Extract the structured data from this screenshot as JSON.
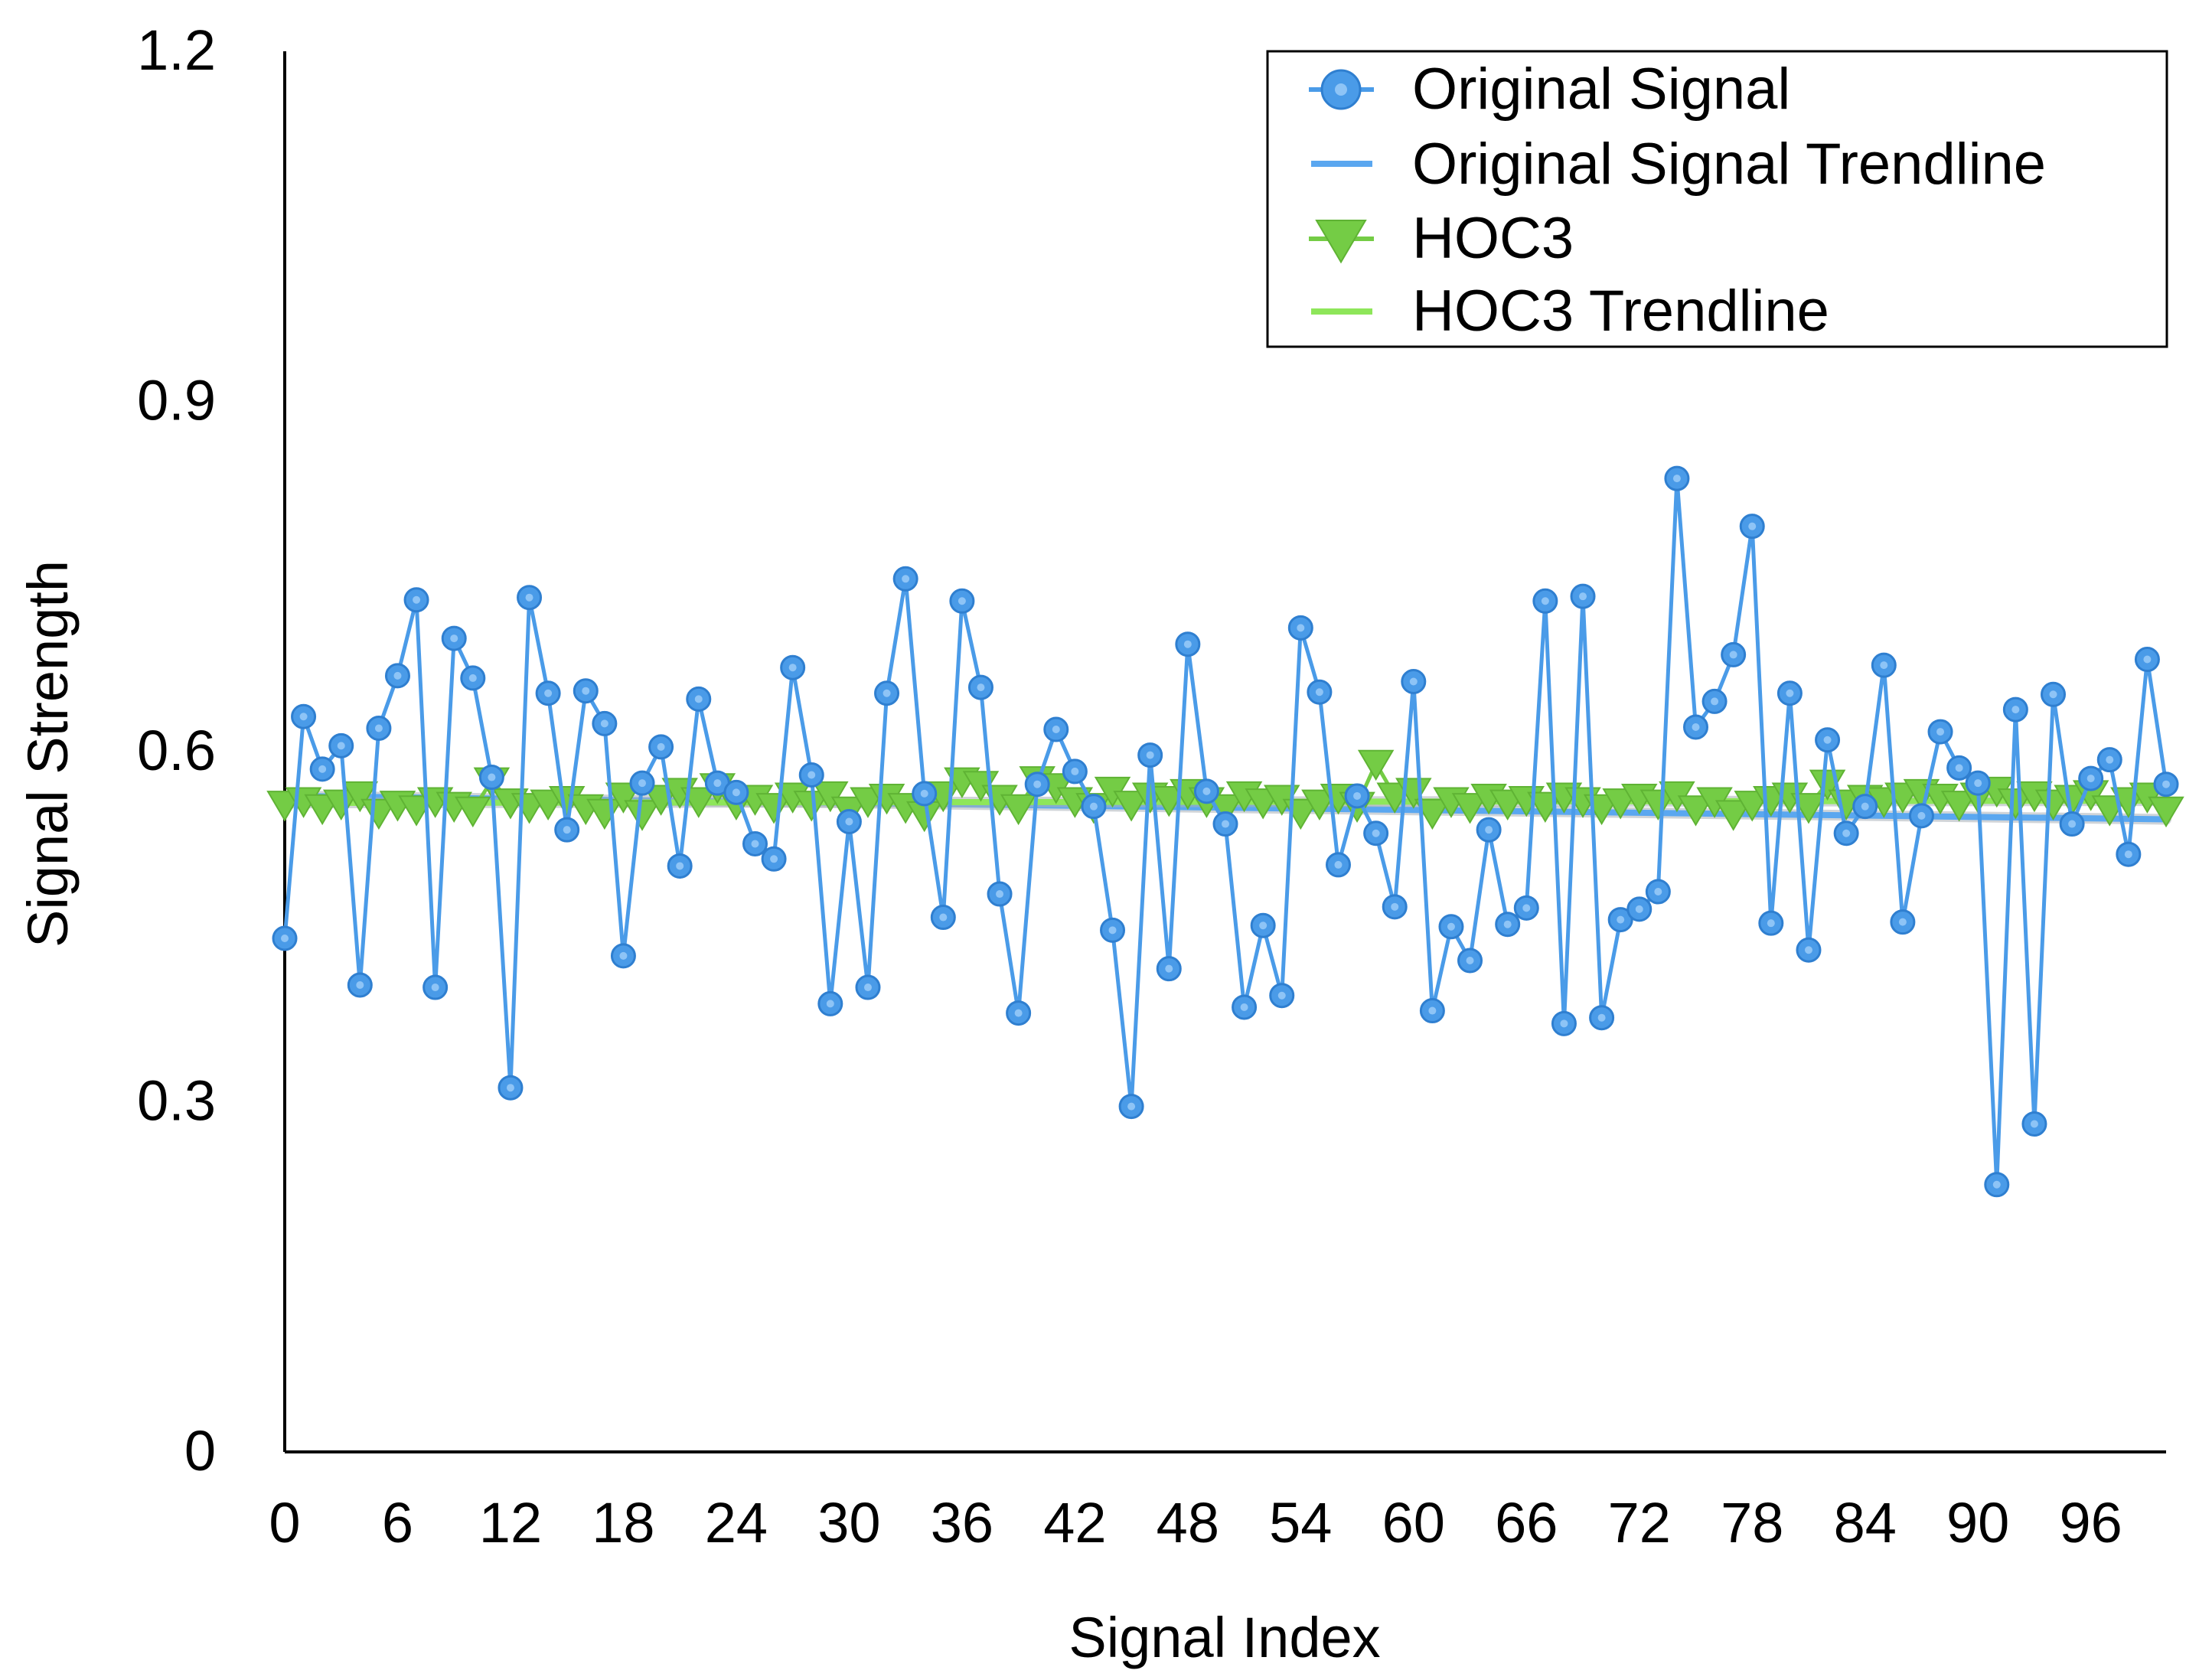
{
  "chart_data": {
    "type": "line",
    "title": "",
    "xlabel": "Signal Index",
    "ylabel": "Signal Strength",
    "xlim": [
      0,
      100
    ],
    "ylim": [
      0,
      1.2
    ],
    "x_ticks": [
      0,
      6,
      12,
      18,
      24,
      30,
      36,
      42,
      48,
      54,
      60,
      66,
      72,
      78,
      84,
      90,
      96
    ],
    "y_ticks": [
      0,
      0.3,
      0.6,
      0.9,
      1.2
    ],
    "y_tick_labels": [
      "0",
      "0.3",
      "0.6",
      "0.9",
      "1.2"
    ],
    "grid": false,
    "legend_position": "top-right",
    "series": [
      {
        "name": "Original Signal",
        "color": "#4a9be8",
        "marker": "circle",
        "values": [
          0.44,
          0.63,
          0.585,
          0.605,
          0.4,
          0.62,
          0.665,
          0.73,
          0.398,
          0.697,
          0.663,
          0.578,
          0.312,
          0.732,
          0.65,
          0.533,
          0.652,
          0.624,
          0.425,
          0.573,
          0.604,
          0.502,
          0.645,
          0.573,
          0.565,
          0.521,
          0.508,
          0.672,
          0.58,
          0.384,
          0.54,
          0.398,
          0.65,
          0.748,
          0.564,
          0.458,
          0.729,
          0.655,
          0.478,
          0.376,
          0.572,
          0.619,
          0.583,
          0.553,
          0.447,
          0.296,
          0.597,
          0.414,
          0.692,
          0.566,
          0.538,
          0.381,
          0.451,
          0.391,
          0.706,
          0.651,
          0.503,
          0.562,
          0.53,
          0.467,
          0.66,
          0.378,
          0.45,
          0.421,
          0.533,
          0.452,
          0.466,
          0.729,
          0.367,
          0.733,
          0.372,
          0.456,
          0.465,
          0.48,
          0.834,
          0.621,
          0.643,
          0.683,
          0.793,
          0.453,
          0.65,
          0.43,
          0.61,
          0.53,
          0.553,
          0.674,
          0.454,
          0.545,
          0.617,
          0.586,
          0.573,
          0.229,
          0.636,
          0.281,
          0.649,
          0.538,
          0.577,
          0.593,
          0.512,
          0.679,
          0.572
        ]
      },
      {
        "name": "Original Signal Trendline",
        "color": "#5aa7f0",
        "values": [
          0.562,
          0.542
        ]
      },
      {
        "name": "HOC3",
        "color": "#74cc45",
        "marker": "triangle-down",
        "values": [
          0.555,
          0.558,
          0.552,
          0.556,
          0.563,
          0.548,
          0.555,
          0.551,
          0.558,
          0.554,
          0.55,
          0.575,
          0.557,
          0.553,
          0.556,
          0.559,
          0.552,
          0.548,
          0.562,
          0.547,
          0.56,
          0.566,
          0.558,
          0.57,
          0.556,
          0.56,
          0.553,
          0.562,
          0.555,
          0.563,
          0.55,
          0.558,
          0.561,
          0.553,
          0.546,
          0.563,
          0.575,
          0.572,
          0.56,
          0.552,
          0.576,
          0.57,
          0.558,
          0.553,
          0.567,
          0.555,
          0.562,
          0.559,
          0.565,
          0.558,
          0.552,
          0.563,
          0.557,
          0.56,
          0.548,
          0.556,
          0.561,
          0.554,
          0.59,
          0.562,
          0.566,
          0.548,
          0.558,
          0.553,
          0.561,
          0.556,
          0.559,
          0.554,
          0.562,
          0.558,
          0.552,
          0.557,
          0.561,
          0.556,
          0.563,
          0.551,
          0.558,
          0.547,
          0.555,
          0.559,
          0.562,
          0.553,
          0.573,
          0.556,
          0.56,
          0.558,
          0.562,
          0.565,
          0.561,
          0.555,
          0.562,
          0.567,
          0.557,
          0.563,
          0.556,
          0.56,
          0.564,
          0.551,
          0.558,
          0.562,
          0.55
        ]
      },
      {
        "name": "HOC3 Trendline",
        "color": "#8ee65a",
        "values": [
          0.556,
          0.558
        ]
      }
    ]
  }
}
